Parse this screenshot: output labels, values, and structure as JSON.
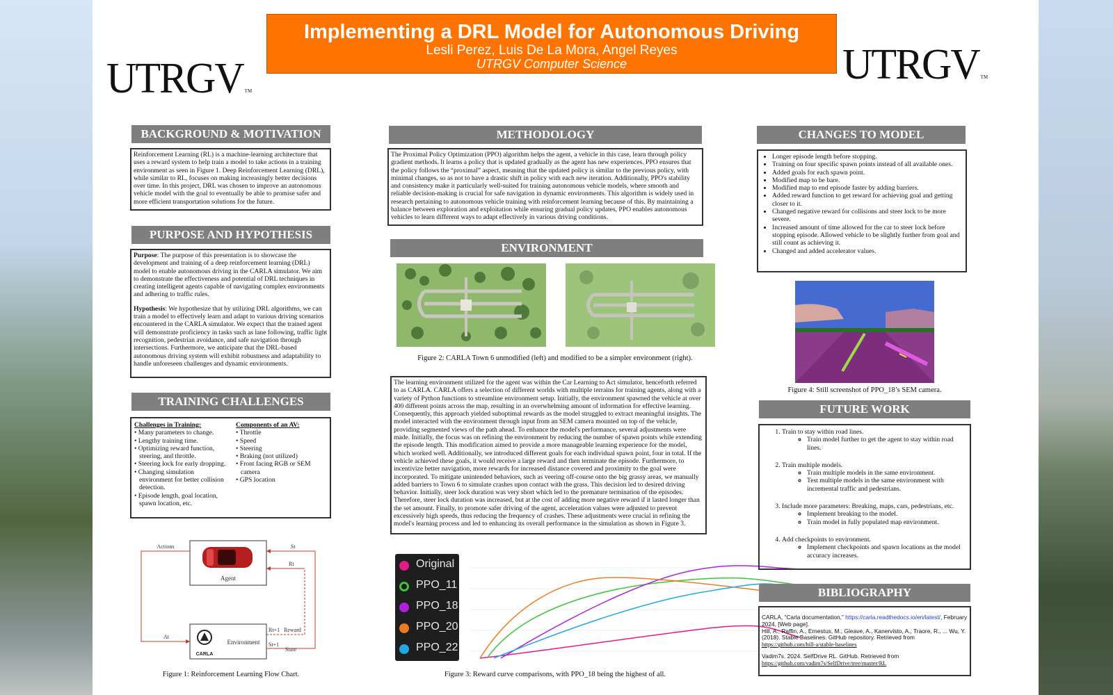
{
  "header": {
    "title": "Implementing a DRL Model for Autonomous Driving",
    "authors": "Lesli Perez, Luis De La Mora, Angel Reyes",
    "department": "UTRGV Computer Science",
    "logo_text": "UTRGV",
    "logo_tm": "TM"
  },
  "background": {
    "heading": "BACKGROUND & MOTIVATION",
    "text": "Reinforcement Learning (RL) is a machine-learning architecture that uses a reward system to help train a model to take actions in a training environment as seen in Figure 1. Deep Reinforcement Learning (DRL), while similar to RL, focuses on making increasingly better decisions over time. In this project, DRL was chosen to improve an autonomous vehicle model with the goal to eventually be able to promise safer and more efficient transportation solutions for the future."
  },
  "purpose": {
    "heading": "PURPOSE AND HYPOTHESIS",
    "purpose_label": "Purpose",
    "purpose_text": ": The purpose of this presentation is to showcase the development and training of a deep reinforcement learning (DRL) model to enable autonomous driving in the CARLA simulator. We aim to demonstrate the effectiveness and potential of DRL techniques in creating intelligent agents capable of navigating complex environments and adhering to traffic rules.",
    "hypothesis_label": "Hypothesis",
    "hypothesis_text": ": We hypothesize that by utilizing DRL algorithms, we can train a model to effectively learn and adapt to various driving scenarios encountered in the CARLA simulator. We expect that the trained agent will demonstrate proficiency in tasks such as lane following, traffic light recognition, pedestrian avoidance, and safe navigation through intersections. Furthermore, we anticipate that the DRL-based autonomous driving system will exhibit robustness and adaptability to handle unforeseen challenges and dynamic environments."
  },
  "training": {
    "heading": "TRAINING CHALLENGES",
    "challenges_title": "Challenges in Training:",
    "challenges": [
      "Many parameters to change.",
      "Lengthy training time.",
      "Optimizing reward function, steering, and throttle.",
      "Steering lock for early dropping.",
      "Changing simulation environment for better collision detection.",
      "Episode length, goal location, spawn location, etc."
    ],
    "components_title": "Components of an AV:",
    "components": [
      "Throttle",
      "Speed",
      "Steering",
      "Braking (not utilized)",
      "Front facing RGB or SEM camera",
      "GPS location"
    ]
  },
  "figure1": {
    "caption": "Figure 1: Reinforcement Learning Flow Chart.",
    "actions": "Actions",
    "agent": "Agent",
    "environment": "Environment",
    "st": "St",
    "rt": "Rt",
    "at": "At",
    "rt1": "Rt+1",
    "st1": "St+1",
    "reward": "Reward",
    "state": "State",
    "carla": "CARLA"
  },
  "methodology": {
    "heading": "METHODOLOGY",
    "text": "The Proximal Policy Optimization (PPO) algorithm helps the agent, a vehicle in this case, learn through policy gradient methods. It learns a policy that is updated gradually as the agent has new experiences. PPO ensures that the policy follows the “proximal” aspect, meaning that the updated policy is similar to the previous policy, with minimal changes, so as not to have a drastic shift in policy with each new iteration. Additionally, PPO's stability and consistency make it particularly well-suited for training autonomous vehicle models, where smooth and reliable decision-making is crucial for safe navigation in dynamic environments. This algorithm is widely used in research pertaining to autonomous vehicle training with reinforcement learning because of this. By maintaining a balance between exploration and exploitation while ensuring gradual policy updates, PPO enables autonomous vehicles to learn different ways to adapt effectively in various driving conditions."
  },
  "environment": {
    "heading": "ENVIRONMENT",
    "figure2_caption": "Figure 2: CARLA Town 6 unmodified (left) and modified to be a simpler environment (right).",
    "text": "The learning environment utilized for the agent was within the Car Learning to Act simulator, henceforth referred to as CARLA. CARLA offers a selection of different worlds with multiple terrains for training agents, along with a variety of Python functions to streamline environment setup. Initially, the environment spawned the vehicle at over 400 different points across the map, resulting in an overwhelming amount of information for effective learning. Consequently, this approach yielded suboptimal rewards as the model struggled to extract meaningful insights. The model interacted with the environment through input from an SEM camera mounted on top of the vehicle, providing segmented views of the path ahead. To enhance the model's performance, several adjustments were made. Initially, the focus was on refining the environment by reducing the number of spawn points while extending the episode length. This modification aimed to provide a more manageable learning experience for the model, which worked well. Additionally, we introduced different goals for each individual spawn point, four in total. If the vehicle achieved these goals, it would receive a large reward and then terminate the episode. Furthermore, to incentivize better navigation, more rewards for increased distance covered and proximity to the goal were incorporated. To mitigate unintended behaviors, such as veering off-course onto the big grassy areas, we manually added barriers to Town 6 to simulate crashes upon contact with the grass. This decision led to desired driving behavior. Initially, steer lock duration was very short which led to the premature termination of the episodes. Therefore, steer lock duration was increased, but at the cost of adding more negative reward if it lasted longer than the set amount. Finally, to promote safer driving of the agent, acceleration values were adjusted to prevent excessively high speeds, thus reducing the frequency of crashes. These adjustments were crucial in refining the model's learning process and led to enhancing its overall performance in the simulation as shown in Figure 3."
  },
  "figure3": {
    "caption": "Figure 3: Reward curve comparisons, with PPO_18 being the highest of all.",
    "legend": [
      {
        "name": "Original",
        "color": "#e6198a"
      },
      {
        "name": "PPO_11",
        "color": "#3cc43c"
      },
      {
        "name": "PPO_18",
        "color": "#b21ee0"
      },
      {
        "name": "PPO_20",
        "color": "#f07a1e"
      },
      {
        "name": "PPO_22",
        "color": "#1ea8e6"
      }
    ]
  },
  "changes": {
    "heading": "CHANGES TO MODEL",
    "items": [
      "Longer episode length before stopping.",
      "Training on four specific spawn points instead of all available ones.",
      "Added goals for each spawn point.",
      "Modified map to be bare.",
      "Modified map to end episode faster by adding barriers.",
      "Added reward function to get reward for achieving goal and getting closer to it.",
      "Changed negative reward for collisions and steer lock to be more severe.",
      "Increased amount of time allowed for the car to steer lock before stopping episode. Allowed vehicle to be slightly further from goal and still count as achieving it.",
      "Changed and added accelerator values."
    ],
    "figure4_caption": "Figure 4: Still screenshot of PPO_18’s SEM camera."
  },
  "future": {
    "heading": "FUTURE WORK",
    "items": [
      {
        "title": "Train to stay within road lines.",
        "sub": [
          "Train model further to get the agent to stay within road lines."
        ]
      },
      {
        "title": "Train multiple models.",
        "sub": [
          "Train multiple models in the same environment.",
          "Test multiple models in the same environment with incremental traffic and pedestrians."
        ]
      },
      {
        "title": "Include more parameters: Breaking, maps, cars, pedestrians, etc.",
        "sub": [
          "Implement breaking to the model.",
          "Train model in fully populated map environment."
        ]
      },
      {
        "title": "Add checkpoints to environment.",
        "sub": [
          "Implement checkpoints and spawn locations as the model accuracy increases."
        ]
      }
    ]
  },
  "bibliography": {
    "heading": "BIBLIOGRAPHY",
    "ref1_a": "CARLA, “Carla documentation,” ",
    "ref1_link": "https://carla.readthedocs.io/en/latest/",
    "ref1_b": ", February 2024, [Web page].",
    "ref2": "Hill, A., Raffin, A., Ernestus, M., Gleave, A., Kanervisto, A., Traore, R., ... Wu, Y. (2018). Stable Baselines. GitHub repository. Retrieved from",
    "ref2_link": "https://github.com/hill-a/stable-baselines",
    "ref3": "Vadim7s. 2024. SelfDrive RL. GitHub. Retrieved from",
    "ref3_link": "https://github.com/vadim7s/SelfDrive/tree/master/RL"
  },
  "colors": {
    "title_orange": "#ff7300",
    "header_gray": "#7f7f7f"
  }
}
